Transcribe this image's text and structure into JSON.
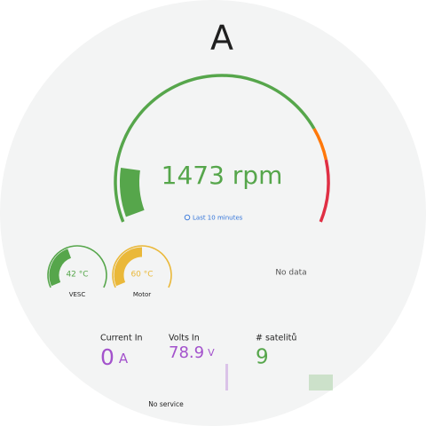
{
  "title": "A",
  "rpm_gauge": {
    "value": "1473 rpm",
    "time_range": "Last 10 minutes"
  },
  "temperature_gauges": [
    {
      "value": "42 °C",
      "label": "VESC"
    },
    {
      "value": "60 °C",
      "label": "Motor"
    }
  ],
  "empty_panel": {
    "message": "No data"
  },
  "stats": [
    {
      "label": "Current In",
      "value": "0",
      "unit": "A"
    },
    {
      "label": "Volts In",
      "value": "78.9",
      "unit": "V"
    },
    {
      "label": "# satelitů",
      "value": "9"
    }
  ],
  "status": "No service"
}
